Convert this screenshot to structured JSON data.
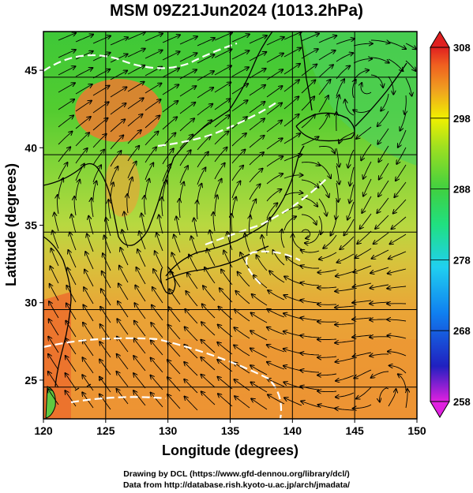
{
  "title": "MSM 09Z21Jun2024 (1013.2hPa)",
  "x_axis": {
    "label": "Longitude (degrees)",
    "range": [
      120,
      150
    ],
    "ticks": [
      "120",
      "125",
      "130",
      "135",
      "140",
      "145",
      "150"
    ]
  },
  "y_axis": {
    "label": "Latitude  (degrees)",
    "range": [
      22.5,
      47.5
    ],
    "ticks": [
      "25",
      "30",
      "35",
      "40",
      "45"
    ]
  },
  "colorbar": {
    "range": [
      258,
      308
    ],
    "ticks": [
      "258",
      "268",
      "278",
      "288",
      "298",
      "308"
    ],
    "colors": [
      "#e020e0",
      "#2020c0",
      "#1080f0",
      "#20d0f0",
      "#20e080",
      "#40d040",
      "#a0e020",
      "#f0f000",
      "#f0a020",
      "#f06020",
      "#e02020"
    ]
  },
  "field_colors": {
    "north_green": "#44c830",
    "mid_yellowgreen": "#a6d43a",
    "south_orange": "#eb9a34",
    "hot_manchuria": "#ef7a30",
    "ocean_edge": "#5fd066"
  },
  "credits": {
    "line1": "Drawing by DCL (https://www.gfd-dennou.org/library/dcl/)",
    "line2": "Data from http://database.rish.kyoto-u.ac.jp/arch/jmadata/"
  }
}
